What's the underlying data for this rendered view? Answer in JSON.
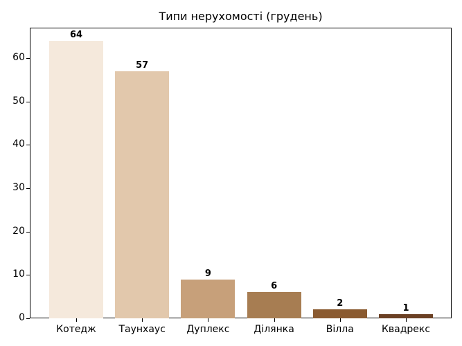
{
  "chart_data": {
    "type": "bar",
    "title": "Типи нерухомості (грудень)",
    "xlabel": "",
    "ylabel": "",
    "categories": [
      "Котедж",
      "Таунхаус",
      "Дуплекс",
      "Ділянка",
      "Вілла",
      "Квадрекс"
    ],
    "values": [
      64,
      57,
      9,
      6,
      2,
      1
    ],
    "colors": [
      "#f5e9dc",
      "#e2c8ac",
      "#c7a07a",
      "#a77d52",
      "#8a5a30",
      "#6b4024"
    ],
    "ylim": [
      0,
      67
    ],
    "yticks": [
      0,
      10,
      20,
      30,
      40,
      50,
      60
    ],
    "grid": false,
    "data_labels": true
  }
}
